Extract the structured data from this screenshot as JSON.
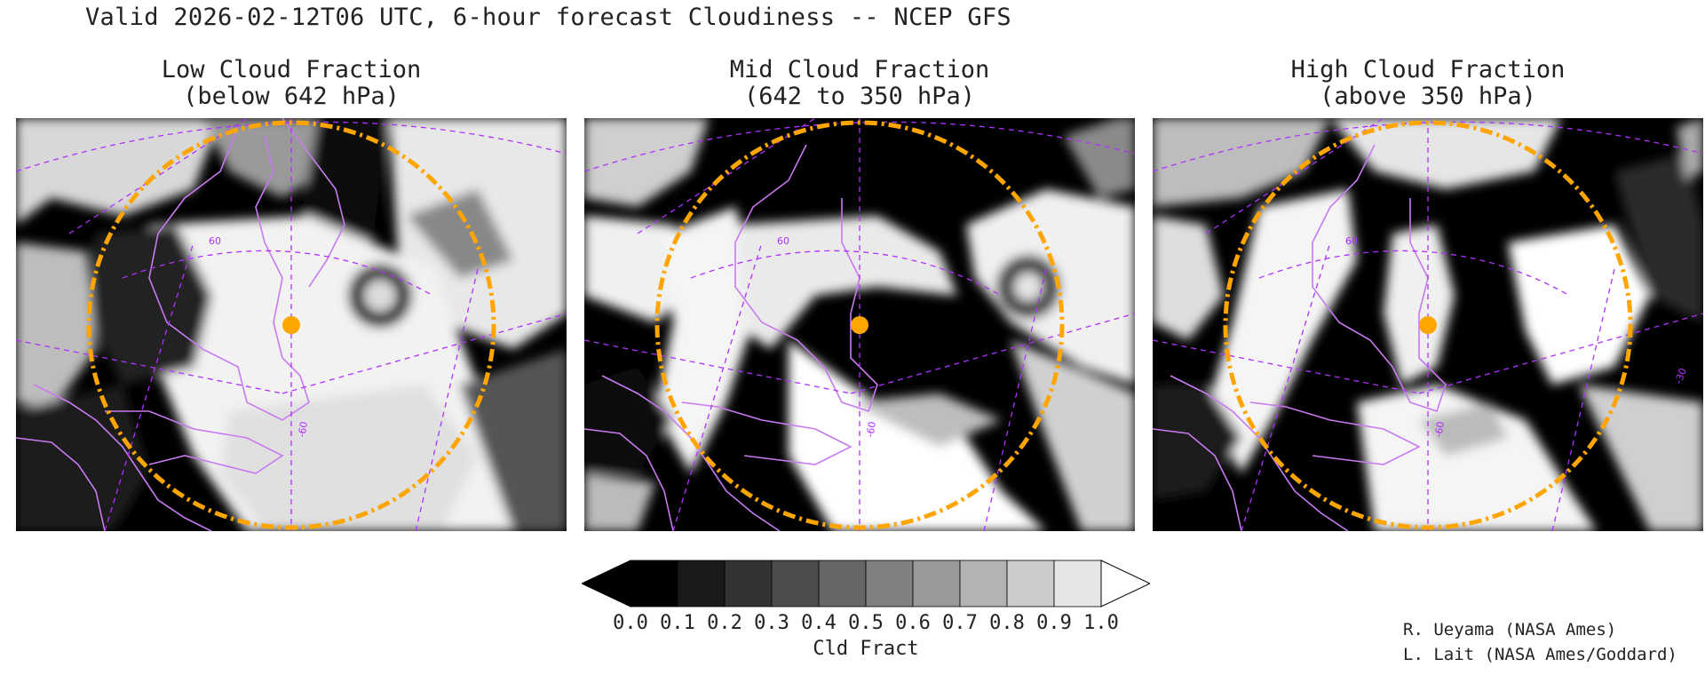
{
  "title": "Valid 2026-02-12T06 UTC, 6-hour forecast Cloudiness -- NCEP GFS",
  "panels": [
    {
      "title_line1": "Low Cloud Fraction",
      "title_line2": "(below 642 hPa)"
    },
    {
      "title_line1": "Mid Cloud Fraction",
      "title_line2": "(642 to 350 hPa)"
    },
    {
      "title_line1": "High Cloud Fraction",
      "title_line2": "(above 350 hPa)"
    }
  ],
  "map_labels": {
    "lat": "60",
    "lon": "-60",
    "lon_east": "-30"
  },
  "colorbar": {
    "ticks": [
      "0.0",
      "0.1",
      "0.2",
      "0.3",
      "0.4",
      "0.5",
      "0.6",
      "0.7",
      "0.8",
      "0.9",
      "1.0"
    ],
    "colors": [
      "#000000",
      "#1a1a1a",
      "#333333",
      "#4d4d4d",
      "#666666",
      "#808080",
      "#999999",
      "#b3b3b3",
      "#cccccc",
      "#e6e6e6"
    ],
    "under_color": "#000000",
    "over_color": "#ffffff",
    "label": "Cld Fract"
  },
  "credits": [
    "R. Ueyama (NASA Ames)",
    "L. Lait (NASA Ames/Goddard)"
  ],
  "overlay_colors": {
    "range_ring": "#ffa500",
    "center_marker": "#ffa500",
    "coastlines": "#c87af0",
    "graticule": "#b030ff"
  }
}
